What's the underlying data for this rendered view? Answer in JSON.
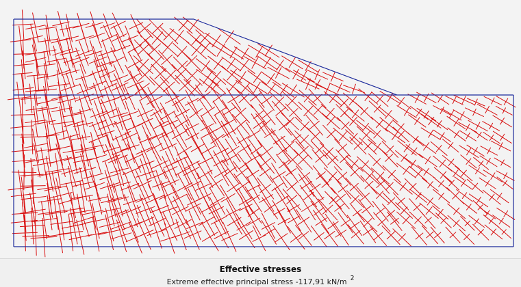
{
  "caption": {
    "title": "Effective stresses",
    "subtitle": "Extreme effective principal stress -117,91 kN/m",
    "unit_exponent": "2"
  },
  "colors": {
    "boundary": "#1c2a9c",
    "stress_cross": "#d81010",
    "plot_background": "#f3f3f3"
  },
  "icons": {
    "stress_marker": "principal-stress-cross-icon"
  }
}
